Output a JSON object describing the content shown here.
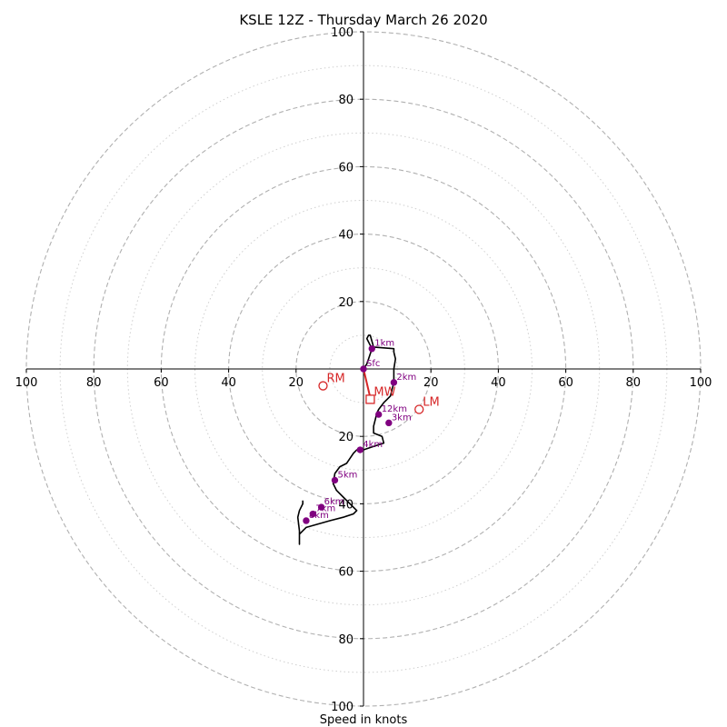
{
  "chart_data": {
    "type": "scatter",
    "title": "KSLE 12Z - Thursday March 26 2020",
    "xlabel": "Speed in knots",
    "xlim": [
      -100,
      100
    ],
    "ylim": [
      -100,
      100
    ],
    "ring_labels": [
      "20",
      "40",
      "60",
      "80",
      "100"
    ],
    "rings_major": [
      20,
      40,
      60,
      80,
      100
    ],
    "rings_minor": [
      10,
      30,
      50,
      70,
      90
    ],
    "x_tick_labels": [
      {
        "value": -100,
        "label": "100"
      },
      {
        "value": -80,
        "label": "80"
      },
      {
        "value": -60,
        "label": "60"
      },
      {
        "value": -40,
        "label": "40"
      },
      {
        "value": -20,
        "label": "20"
      },
      {
        "value": 20,
        "label": "20"
      },
      {
        "value": 40,
        "label": "40"
      },
      {
        "value": 60,
        "label": "60"
      },
      {
        "value": 80,
        "label": "80"
      },
      {
        "value": 100,
        "label": "100"
      }
    ],
    "y_tick_labels": [
      {
        "value": 100,
        "label": "100"
      },
      {
        "value": 80,
        "label": "80"
      },
      {
        "value": 60,
        "label": "60"
      },
      {
        "value": 40,
        "label": "40"
      },
      {
        "value": 20,
        "label": "20"
      },
      {
        "value": -20,
        "label": "20"
      },
      {
        "value": -40,
        "label": "40"
      },
      {
        "value": -60,
        "label": "60"
      },
      {
        "value": -80,
        "label": "80"
      },
      {
        "value": -100,
        "label": "100"
      }
    ],
    "hodograph": [
      [
        0,
        0
      ],
      [
        1,
        1.5
      ],
      [
        1.5,
        3
      ],
      [
        2.5,
        6
      ],
      [
        1,
        9
      ],
      [
        1.5,
        10
      ],
      [
        2,
        10
      ],
      [
        3,
        6.5
      ],
      [
        9,
        6
      ],
      [
        9,
        5
      ],
      [
        9.5,
        3
      ],
      [
        9,
        0
      ],
      [
        9,
        -4
      ],
      [
        8.5,
        -6
      ],
      [
        8,
        -8
      ],
      [
        7,
        -9
      ],
      [
        6,
        -10
      ],
      [
        4.5,
        -12
      ],
      [
        4,
        -13
      ],
      [
        3.5,
        -15
      ],
      [
        3,
        -17
      ],
      [
        3,
        -19
      ],
      [
        5.5,
        -20
      ],
      [
        6,
        -22
      ],
      [
        3,
        -23
      ],
      [
        0,
        -24
      ],
      [
        -2,
        -24
      ],
      [
        -3,
        -25
      ],
      [
        -5,
        -28
      ],
      [
        -7,
        -29
      ],
      [
        -8.5,
        -31
      ],
      [
        -9,
        -34
      ],
      [
        -8,
        -36
      ],
      [
        -6,
        -38
      ],
      [
        -4,
        -40
      ],
      [
        -2,
        -42
      ],
      [
        -3,
        -43
      ],
      [
        -6,
        -44
      ],
      [
        -10,
        -45
      ],
      [
        -17,
        -47
      ],
      [
        -18,
        -48
      ],
      [
        -19,
        -49
      ],
      [
        -19,
        -52
      ],
      [
        -19,
        -48
      ],
      [
        -19.5,
        -44
      ],
      [
        -19,
        -42
      ],
      [
        -18,
        -40
      ],
      [
        -18,
        -39
      ]
    ],
    "height_markers": [
      {
        "label": "Sfc",
        "x": 0,
        "y": 0
      },
      {
        "label": "1km",
        "x": 2.5,
        "y": 6
      },
      {
        "label": "2km",
        "x": 9,
        "y": -4
      },
      {
        "label": "12km",
        "x": 4.5,
        "y": -13.5
      },
      {
        "label": "3km",
        "x": 7.5,
        "y": -16
      },
      {
        "label": "4km",
        "x": -1,
        "y": -24
      },
      {
        "label": "5km",
        "x": -8.5,
        "y": -33
      },
      {
        "label": "6km",
        "x": -12.5,
        "y": -41
      },
      {
        "label": "7km",
        "x": -15,
        "y": -43
      },
      {
        "label": "8km",
        "x": -17,
        "y": -45
      }
    ],
    "storm_motions": [
      {
        "label": "RM",
        "x": -12,
        "y": -5,
        "shape": "circle"
      },
      {
        "label": "MW",
        "x": 2,
        "y": -9,
        "shape": "square"
      },
      {
        "label": "LM",
        "x": 16.5,
        "y": -12,
        "shape": "circle"
      }
    ],
    "storm_motion_vector": {
      "from": [
        0,
        0
      ],
      "to": [
        2,
        -8.5
      ]
    },
    "colors": {
      "hodograph": "#000000",
      "markers": "#800080",
      "storm_motion": "#d62728",
      "grid": "#b0b0b0"
    }
  }
}
